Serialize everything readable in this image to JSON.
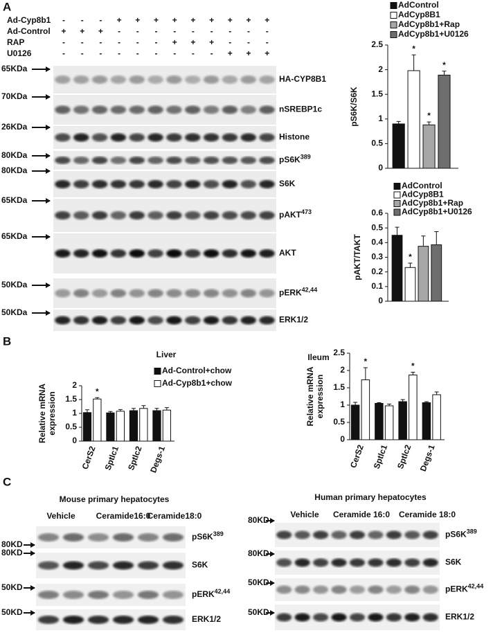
{
  "panel_labels": {
    "a": "A",
    "b": "B",
    "c": "C"
  },
  "panel_a": {
    "treatments": [
      {
        "name": "Ad-Cyp8b1",
        "signs": [
          "-",
          "-",
          "-",
          "+",
          "+",
          "+",
          "+",
          "+",
          "+",
          "+",
          "+",
          "+"
        ]
      },
      {
        "name": "Ad-Control",
        "signs": [
          "+",
          "+",
          "+",
          "-",
          "-",
          "-",
          "-",
          "-",
          "-",
          "-",
          "-",
          "-"
        ]
      },
      {
        "name": "RAP",
        "signs": [
          "-",
          "-",
          "-",
          "-",
          "-",
          "-",
          "+",
          "+",
          "+",
          "-",
          "-",
          "-"
        ]
      },
      {
        "name": "U0126",
        "signs": [
          "-",
          "-",
          "-",
          "-",
          "-",
          "-",
          "-",
          "-",
          "-",
          "+",
          "+",
          "+"
        ]
      }
    ],
    "blots": [
      {
        "marker": "65KDa",
        "label": "HA-CYP8B1"
      },
      {
        "marker": "70KDa",
        "label": "nSREBP1c"
      },
      {
        "marker": "26KDa",
        "label": "Histone"
      },
      {
        "marker": "80KDa",
        "label": "pS6K",
        "sup": "389"
      },
      {
        "marker": "80KDa",
        "label": "S6K"
      },
      {
        "marker": "65KDa",
        "label": "pAKT",
        "sup": "473"
      },
      {
        "marker": "65KDa",
        "label": "AKT"
      },
      {
        "marker": "50KDa",
        "label": "pERK",
        "sup": "42,44"
      },
      {
        "marker": "50KDa",
        "label": "ERK1/2"
      }
    ]
  },
  "chart_data": [
    {
      "type": "bar",
      "y_label": [
        "pS6K/S6K"
      ],
      "categories": [
        null
      ],
      "legend": "top",
      "ylim": [
        0,
        2.5
      ],
      "yticks": [
        0,
        0.5,
        1,
        1.5,
        2,
        2.5
      ],
      "series": [
        {
          "name": "AdControl",
          "color": "#111111",
          "values": [
            0.9
          ],
          "errors": [
            0.05
          ]
        },
        {
          "name": "AdCyp8B1",
          "color": "#ffffff",
          "values": [
            1.98
          ],
          "errors": [
            0.32
          ],
          "markers": [
            "*"
          ]
        },
        {
          "name": "AdCyp8b1+Rap",
          "color": "#a6a6a6",
          "values": [
            0.88
          ],
          "errors": [
            0.06
          ],
          "markers": [
            "*"
          ]
        },
        {
          "name": "AdCyp8b1+U0126",
          "color": "#6e6e6e",
          "values": [
            1.89
          ],
          "errors": [
            0.08
          ],
          "markers": [
            "*"
          ]
        }
      ]
    },
    {
      "type": "bar",
      "y_label": [
        "pAKT/TAKT"
      ],
      "categories": [
        null
      ],
      "legend": "top",
      "ylim": [
        0,
        0.6
      ],
      "yticks": [
        0,
        0.1,
        0.2,
        0.3,
        0.4,
        0.5,
        0.6
      ],
      "series": [
        {
          "name": "AdControl",
          "color": "#111111",
          "values": [
            0.45
          ],
          "errors": [
            0.055
          ]
        },
        {
          "name": "AdCyp8B1",
          "color": "#ffffff",
          "values": [
            0.23
          ],
          "errors": [
            0.03
          ],
          "markers": [
            "*"
          ]
        },
        {
          "name": "AdCyp8b1+Rap",
          "color": "#a6a6a6",
          "values": [
            0.375
          ],
          "errors": [
            0.07
          ]
        },
        {
          "name": "AdCyp8b1+U0126",
          "color": "#6e6e6e",
          "values": [
            0.385
          ],
          "errors": [
            0.09
          ]
        }
      ]
    },
    {
      "type": "bar",
      "title": "Liver",
      "y_label": [
        "Relative mRNA",
        "expression"
      ],
      "legend": "upper right",
      "categories": [
        "CerS2",
        "Sptlc1",
        "Sptlc2",
        "Degs-1"
      ],
      "ylim": [
        0,
        2
      ],
      "yticks": [
        0,
        0.5,
        1,
        1.5,
        2
      ],
      "series": [
        {
          "name": "Ad-Control+chow",
          "color": "#111111",
          "values": [
            1.03,
            1.02,
            1.1,
            1.1
          ],
          "errors": [
            0.1,
            0.05,
            0.08,
            0.08
          ]
        },
        {
          "name": "Ad-Cyp8b1+chow",
          "color": "#ffffff",
          "values": [
            1.52,
            1.08,
            1.18,
            1.12
          ],
          "errors": [
            0.05,
            0.06,
            0.1,
            0.09
          ],
          "markers": [
            "*",
            null,
            null,
            null
          ]
        }
      ]
    },
    {
      "type": "bar",
      "title": "Ileum",
      "y_label": [
        "Relative mRNA",
        "expression"
      ],
      "categories": [
        "CerS2",
        "Sptlc1",
        "Sptlc2",
        "Degs-1"
      ],
      "ylim": [
        0,
        2.5
      ],
      "yticks": [
        0,
        0.5,
        1,
        1.5,
        2,
        2.5
      ],
      "series": [
        {
          "color": "#111111",
          "values": [
            1.0,
            1.05,
            1.1,
            1.07
          ],
          "errors": [
            0.08,
            0.02,
            0.06,
            0.03
          ]
        },
        {
          "color": "#ffffff",
          "values": [
            1.73,
            0.98,
            1.87,
            1.3
          ],
          "errors": [
            0.35,
            0.05,
            0.08,
            0.08
          ],
          "markers": [
            "*",
            null,
            "*",
            null
          ]
        }
      ]
    }
  ],
  "panel_c": [
    {
      "title": "Mouse primary hepatocytes",
      "groups": [
        "Vehicle",
        "Ceramide16:0",
        "Ceramide18:0"
      ],
      "blots": [
        {
          "marker": "80KD",
          "label": "pS6K",
          "sup": "389"
        },
        {
          "marker": "80KD",
          "label": "S6K"
        },
        {
          "marker": "50KD",
          "label": "pERK",
          "sup": "42,44"
        },
        {
          "marker": "50KD",
          "label": "ERK1/2"
        }
      ]
    },
    {
      "title": "Human primary hepatocytes",
      "groups": [
        "Vehicle",
        "Ceramide 16:0",
        "Ceramide 18:0"
      ],
      "blots": [
        {
          "marker": "80KD",
          "label": "pS6K",
          "sup": "389"
        },
        {
          "marker": "80KD",
          "label": "S6K"
        },
        {
          "marker": "50KD",
          "label": "pERK",
          "sup": "42,44"
        },
        {
          "marker": "50KD",
          "label": "ERK1/2"
        }
      ]
    }
  ]
}
